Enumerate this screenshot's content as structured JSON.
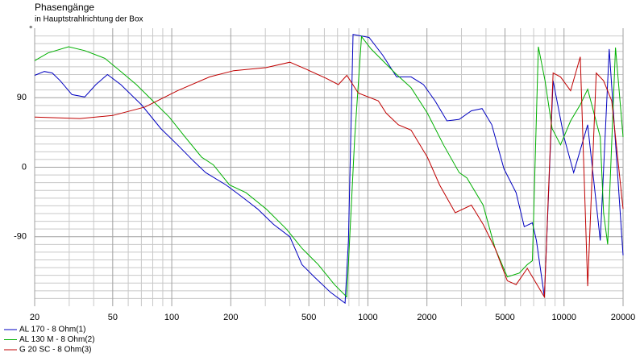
{
  "chart_data": {
    "type": "line",
    "title": "Phasengänge",
    "subtitle": "in Hauptstrahlrichtung der Box",
    "y_label": "°",
    "x_log": true,
    "grid": true,
    "legend_position": "bottom-left",
    "xlim": [
      20,
      20000
    ],
    "ylim": [
      -180,
      180
    ],
    "xticks": [
      20,
      50,
      100,
      200,
      500,
      1000,
      2000,
      5000,
      10000,
      20000
    ],
    "yticks": [
      -90,
      0,
      90
    ],
    "minor_xticks": [
      30,
      40,
      60,
      70,
      80,
      90,
      300,
      400,
      600,
      700,
      800,
      900,
      3000,
      4000,
      6000,
      7000,
      8000,
      9000
    ],
    "minor_yticks": [
      -170,
      -160,
      -150,
      -140,
      -130,
      -120,
      -110,
      -100,
      -80,
      -70,
      -60,
      -50,
      -40,
      -30,
      -20,
      -10,
      10,
      20,
      30,
      40,
      50,
      60,
      70,
      80,
      100,
      110,
      120,
      130,
      140,
      150,
      160,
      170
    ],
    "series": [
      {
        "name": "AL 170 - 8 Ohm(1)",
        "color": "#0000c0",
        "x": [
          20,
          22.4,
          24.6,
          27,
          31,
          36,
          41,
          47,
          55,
          70,
          88,
          107,
          129,
          149,
          189,
          227,
          274,
          330,
          400,
          461,
          533,
          645,
          765,
          796,
          840,
          1014,
          1190,
          1400,
          1660,
          1920,
          2200,
          2530,
          2920,
          3370,
          3820,
          4280,
          4940,
          5700,
          6270,
          6900,
          7230,
          7940,
          8800,
          10000,
          11200,
          13200,
          15300,
          17000,
          20000
        ],
        "values": [
          119,
          124,
          122,
          112,
          94,
          91,
          107,
          120,
          107,
          81,
          50,
          29,
          8,
          -7,
          -23,
          -38,
          -54,
          -74,
          -90,
          -126,
          -142,
          -162,
          -176,
          -95,
          172,
          168,
          145,
          117,
          117,
          107,
          86,
          60,
          62,
          73,
          76,
          55,
          -2,
          -33,
          -77,
          -72,
          -95,
          -168,
          112,
          39,
          -7,
          55,
          -95,
          153,
          -114
        ]
      },
      {
        "name": "AL 130 M - 8 Ohm(2)",
        "color": "#00b000",
        "x": [
          20,
          23.4,
          29.8,
          36,
          45.6,
          55,
          66,
          80,
          97,
          117,
          142,
          163,
          197,
          239,
          303,
          384,
          461,
          558,
          676,
          780,
          857,
          928,
          1039,
          1376,
          1660,
          2010,
          2430,
          2920,
          3200,
          3870,
          4450,
          5140,
          5920,
          6500,
          6900,
          7400,
          8000,
          8700,
          9600,
          10800,
          12100,
          13200,
          15300,
          15900,
          16700,
          18300,
          20000
        ],
        "values": [
          138,
          148,
          156,
          151,
          141,
          124,
          107,
          86,
          65,
          39,
          13,
          3,
          -23,
          -33,
          -54,
          -80,
          -105,
          -126,
          -152,
          -168,
          39,
          169,
          153,
          122,
          103,
          70,
          29,
          -7,
          -14,
          -49,
          -105,
          -142,
          -137,
          -126,
          -121,
          156,
          112,
          50,
          29,
          60,
          81,
          101,
          39,
          -59,
          -100,
          155,
          39
        ]
      },
      {
        "name": "G 20 SC - 8 Ohm(3)",
        "color": "#c00000",
        "x": [
          20,
          34,
          50,
          73,
          107,
          156,
          207,
          303,
          400,
          484,
          614,
          707,
          781,
          893,
          1130,
          1240,
          1430,
          1660,
          2010,
          2320,
          2790,
          3370,
          3870,
          4450,
          5140,
          5700,
          6500,
          7940,
          8800,
          9600,
          10800,
          12100,
          13200,
          14600,
          15900,
          17500,
          20000
        ],
        "values": [
          65,
          63,
          67,
          78,
          99,
          117,
          125,
          129,
          136,
          127,
          115,
          107,
          119,
          96,
          86,
          70,
          55,
          48,
          13,
          -23,
          -59,
          -49,
          -74,
          -105,
          -147,
          -152,
          -131,
          -168,
          122,
          117,
          99,
          143,
          -154,
          122,
          112,
          86,
          -54
        ]
      }
    ]
  }
}
